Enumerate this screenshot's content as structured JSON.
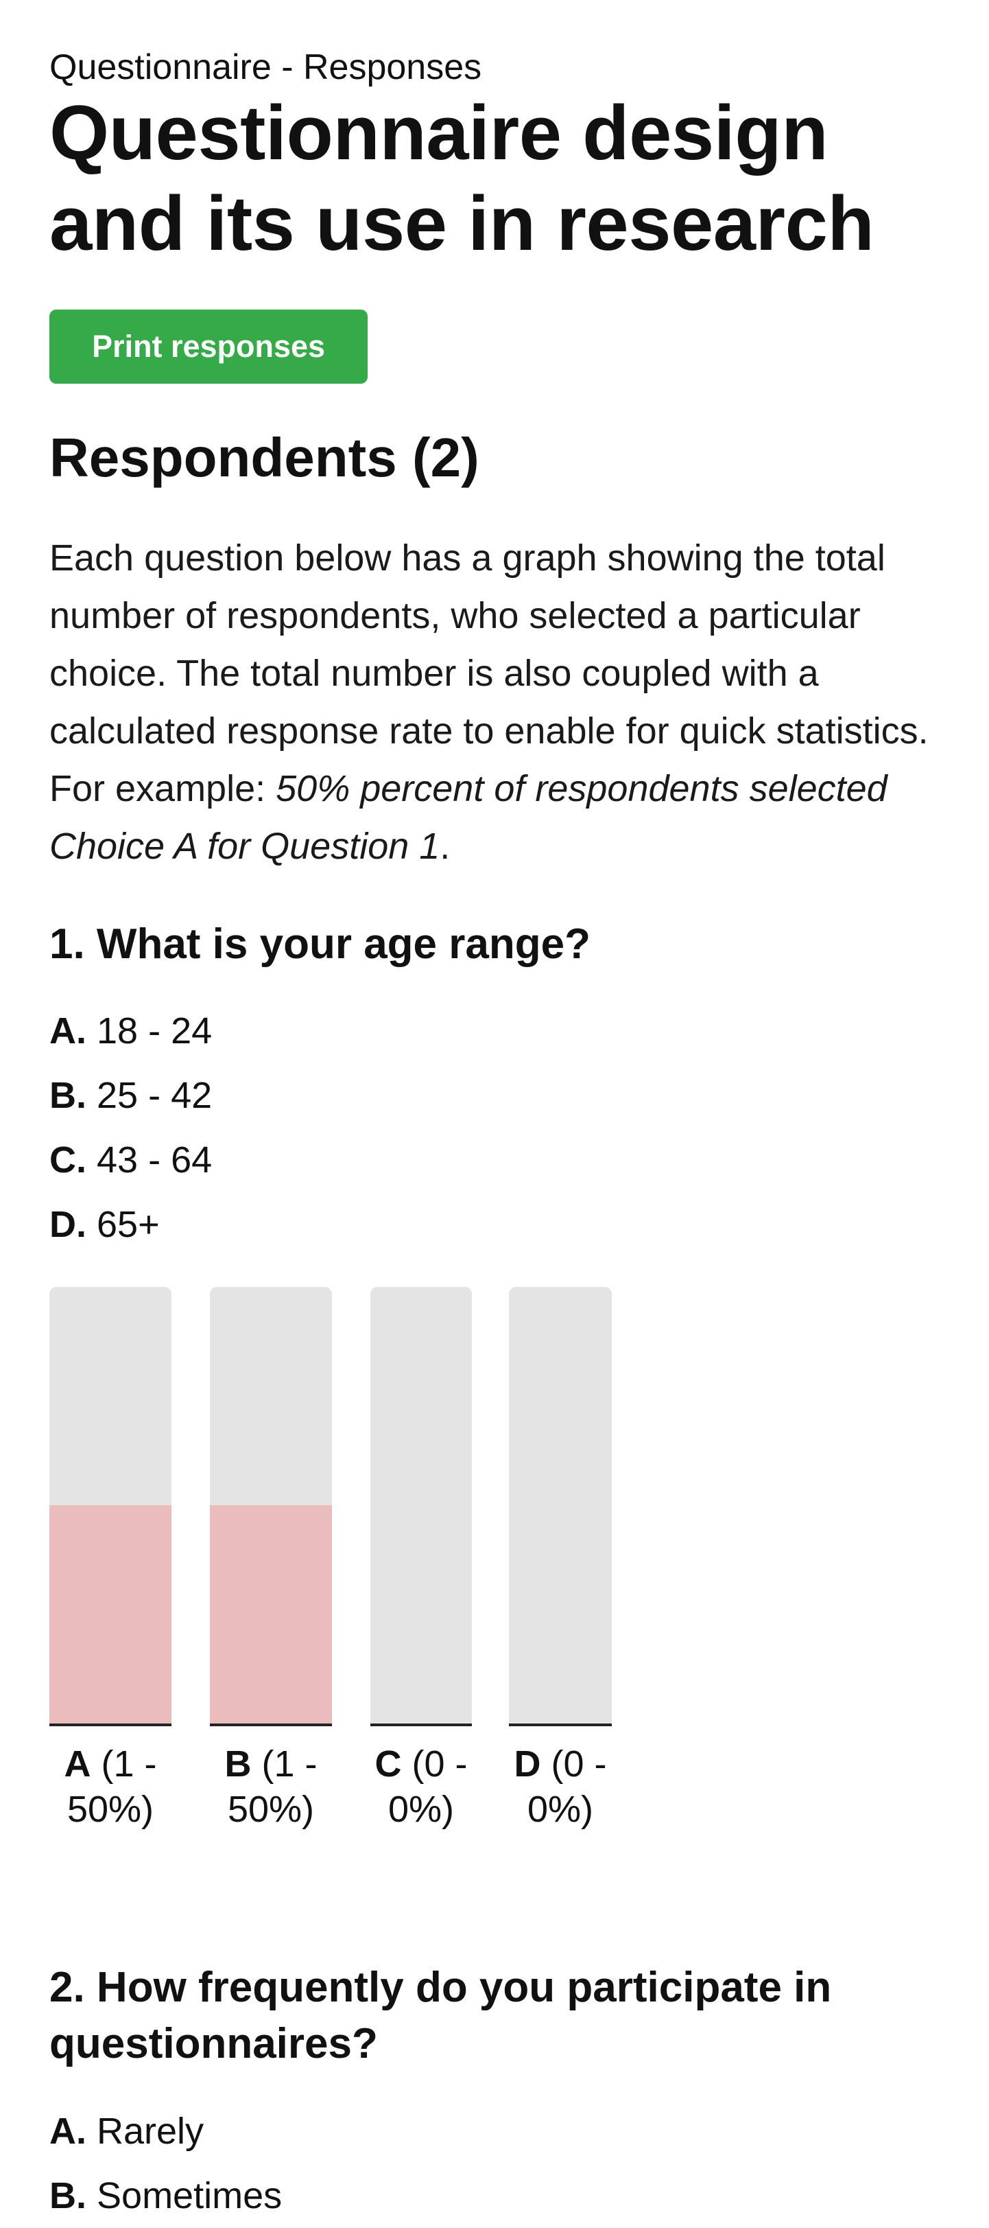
{
  "breadcrumb": "Questionnaire - Responses",
  "title": "Questionnaire design and its use in research",
  "print_button": "Print responses",
  "respondents_heading": "Respondents (2)",
  "intro": {
    "text": "Each question below has a graph showing the total number of respondents, who selected a particular choice. The total number is also coupled with a calculated response rate to enable for quick statistics. For example: ",
    "example": "50% percent of respondents selected Choice A for Question 1",
    "end": "."
  },
  "colors": {
    "button": "#36a948",
    "bar_track": "#e4e4e4",
    "bar_fill": "#ebbcbc"
  },
  "questions": [
    {
      "heading": "1. What is your age range?",
      "choices": [
        {
          "letter": "A.",
          "text": "18 - 24"
        },
        {
          "letter": "B.",
          "text": "25 - 42"
        },
        {
          "letter": "C.",
          "text": "43 - 64"
        },
        {
          "letter": "D.",
          "text": "65+"
        }
      ]
    },
    {
      "heading": "2. How frequently do you participate in questionnaires?",
      "choices": [
        {
          "letter": "A.",
          "text": "Rarely"
        },
        {
          "letter": "B.",
          "text": "Sometimes"
        }
      ]
    }
  ],
  "chart_data": {
    "type": "bar",
    "categories": [
      "A",
      "B",
      "C",
      "D"
    ],
    "counts": [
      1,
      1,
      0,
      0
    ],
    "percent": [
      50,
      50,
      0,
      0
    ],
    "labels": [
      "(1 - 50%)",
      "(1 - 50%)",
      "(0 - 0%)",
      "(0 - 0%)"
    ],
    "ylim": [
      0,
      100
    ]
  }
}
